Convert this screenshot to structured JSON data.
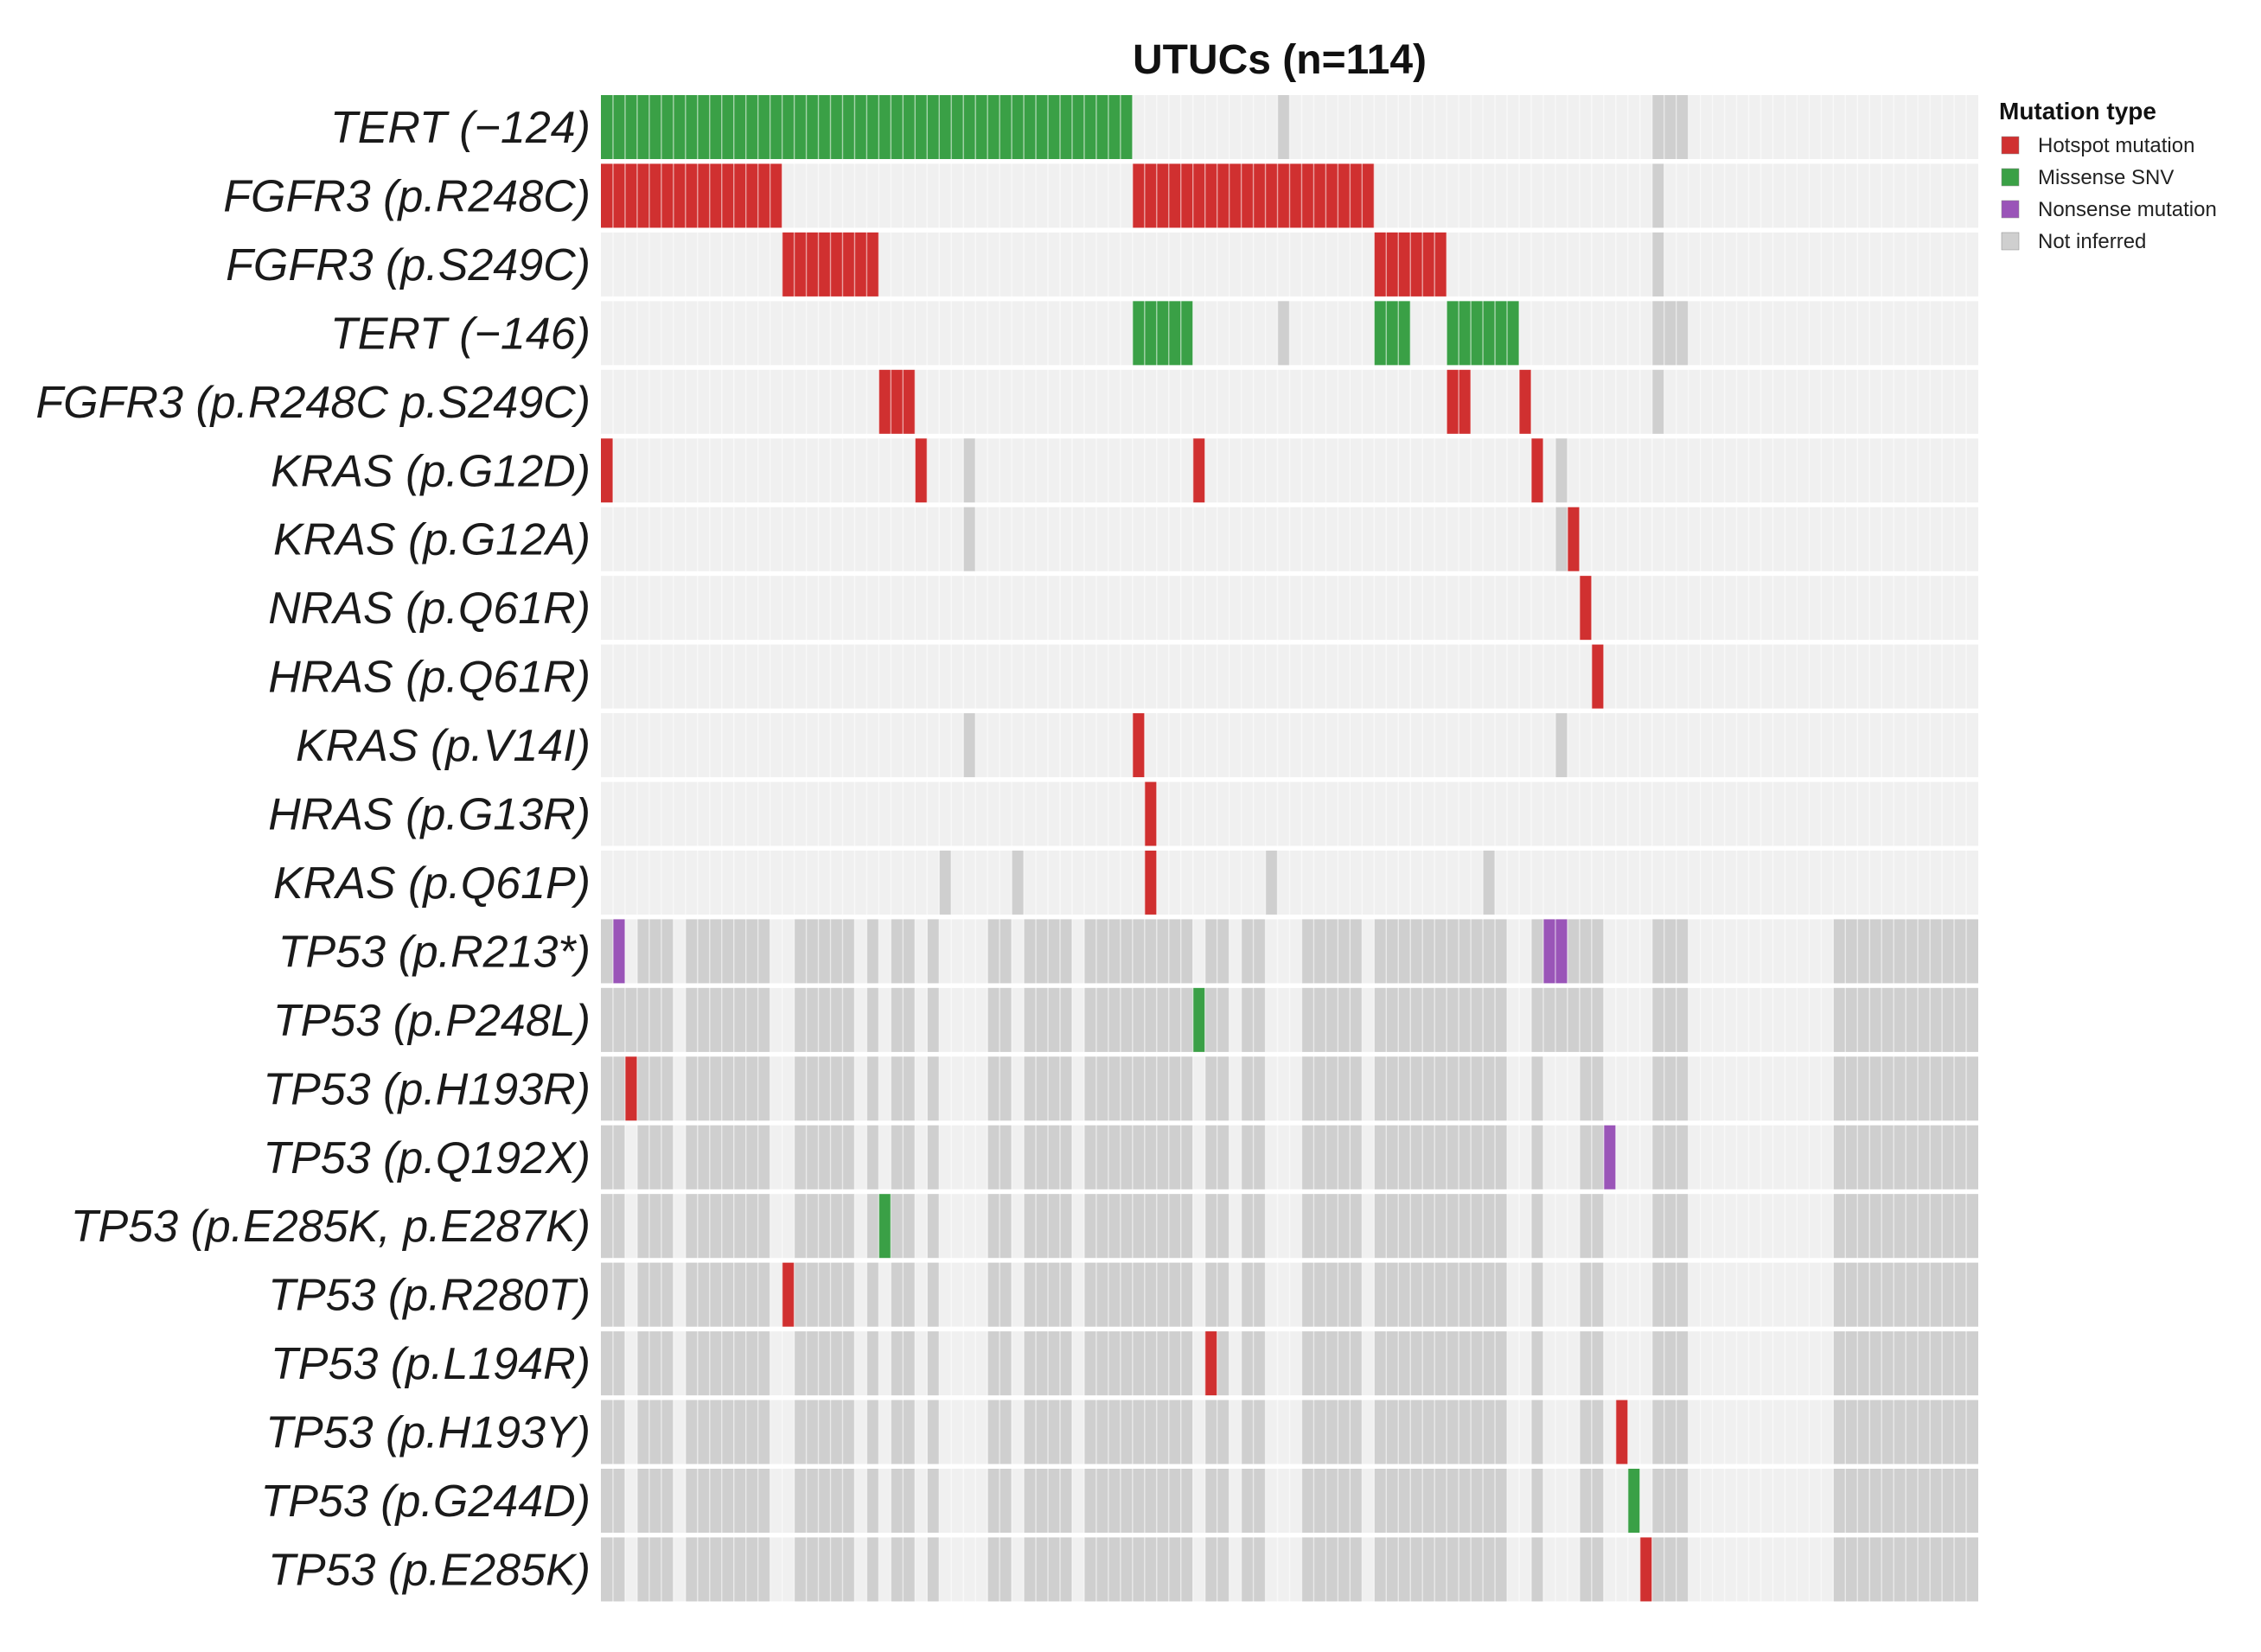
{
  "chart_data": {
    "type": "heatmap",
    "subtype": "oncoprint",
    "title": "UTUCs (n=114)",
    "n_samples": 114,
    "genes": [
      "TERT (−124)",
      "FGFR3 (p.R248C)",
      "FGFR3 (p.S249C)",
      "TERT (−146)",
      "FGFR3 (p.R248C p.S249C)",
      "KRAS (p.G12D)",
      "KRAS (p.G12A)",
      "NRAS (p.Q61R)",
      "HRAS (p.Q61R)",
      "KRAS (p.V14I)",
      "HRAS (p.G13R)",
      "KRAS (p.Q61P)",
      "TP53 (p.R213*)",
      "TP53 (p.P248L)",
      "TP53 (p.H193R)",
      "TP53 (p.Q192X)",
      "TP53 (p.E285K, p.E287K)",
      "TP53 (p.R280T)",
      "TP53 (p.L194R)",
      "TP53 (p.H193Y)",
      "TP53 (p.G244D)",
      "TP53 (p.E285K)"
    ],
    "legend": {
      "title": "Mutation type",
      "position": "top-right",
      "items": [
        {
          "label": "Hotspot mutation",
          "code": "H",
          "color": "#d03030"
        },
        {
          "label": "Missense SNV",
          "code": "M",
          "color": "#3aa046"
        },
        {
          "label": "Nonsense mutation",
          "code": "N",
          "color": "#9a55b8"
        },
        {
          "label": "Not inferred",
          "code": "X",
          "color": "#cfcfcf"
        }
      ]
    },
    "background_color": "#f0f0f0",
    "mutations": [
      {
        "gene": 0,
        "type": "M",
        "samples": [
          [
            0,
            43
          ]
        ]
      },
      {
        "gene": 1,
        "type": "H",
        "samples": [
          [
            0,
            14
          ],
          [
            44,
            63
          ]
        ]
      },
      {
        "gene": 2,
        "type": "H",
        "samples": [
          [
            15,
            22
          ],
          [
            64,
            69
          ]
        ]
      },
      {
        "gene": 3,
        "type": "M",
        "samples": [
          [
            44,
            48
          ],
          [
            64,
            66
          ],
          [
            70,
            75
          ]
        ]
      },
      {
        "gene": 4,
        "type": "H",
        "samples": [
          [
            23,
            25
          ],
          [
            70,
            71
          ],
          [
            76,
            76
          ]
        ]
      },
      {
        "gene": 5,
        "type": "H",
        "samples": [
          [
            0,
            0
          ],
          [
            26,
            26
          ],
          [
            49,
            49
          ],
          [
            77,
            77
          ]
        ]
      },
      {
        "gene": 6,
        "type": "H",
        "samples": [
          [
            80,
            80
          ]
        ]
      },
      {
        "gene": 7,
        "type": "H",
        "samples": [
          [
            81,
            81
          ]
        ]
      },
      {
        "gene": 8,
        "type": "H",
        "samples": [
          [
            82,
            82
          ]
        ]
      },
      {
        "gene": 9,
        "type": "H",
        "samples": [
          [
            44,
            44
          ]
        ]
      },
      {
        "gene": 10,
        "type": "H",
        "samples": [
          [
            45,
            45
          ]
        ]
      },
      {
        "gene": 11,
        "type": "H",
        "samples": [
          [
            45,
            45
          ]
        ]
      },
      {
        "gene": 12,
        "type": "N",
        "samples": [
          [
            1,
            1
          ],
          [
            78,
            79
          ]
        ]
      },
      {
        "gene": 13,
        "type": "M",
        "samples": [
          [
            49,
            49
          ]
        ]
      },
      {
        "gene": 14,
        "type": "H",
        "samples": [
          [
            2,
            2
          ]
        ]
      },
      {
        "gene": 15,
        "type": "N",
        "samples": [
          [
            83,
            83
          ]
        ]
      },
      {
        "gene": 16,
        "type": "M",
        "samples": [
          [
            23,
            23
          ]
        ]
      },
      {
        "gene": 17,
        "type": "H",
        "samples": [
          [
            15,
            15
          ]
        ]
      },
      {
        "gene": 18,
        "type": "H",
        "samples": [
          [
            50,
            50
          ]
        ]
      },
      {
        "gene": 19,
        "type": "H",
        "samples": [
          [
            84,
            84
          ]
        ]
      },
      {
        "gene": 20,
        "type": "M",
        "samples": [
          [
            85,
            85
          ]
        ]
      },
      {
        "gene": 21,
        "type": "H",
        "samples": [
          [
            86,
            86
          ]
        ]
      }
    ],
    "not_inferred": [
      {
        "genes": [
          0,
          3
        ],
        "samples": [
          [
            56,
            56
          ],
          [
            87,
            89
          ]
        ]
      },
      {
        "genes": [
          1,
          2,
          4
        ],
        "samples": [
          [
            87,
            87
          ]
        ]
      },
      {
        "genes": [
          5,
          6
        ],
        "samples": [
          [
            30,
            30
          ]
        ]
      },
      {
        "genes": [
          5,
          6
        ],
        "samples": [
          [
            79,
            79
          ]
        ]
      },
      {
        "genes": [
          9
        ],
        "samples": [
          [
            30,
            30
          ],
          [
            79,
            79
          ]
        ]
      },
      {
        "genes": [
          11
        ],
        "samples": [
          [
            28,
            28
          ],
          [
            34,
            34
          ],
          [
            55,
            55
          ],
          [
            73,
            73
          ]
        ]
      },
      {
        "genes": [
          12,
          13,
          14,
          15,
          16,
          17,
          18,
          19,
          20,
          21
        ],
        "samples": [
          [
            0,
            0
          ],
          [
            3,
            5
          ],
          [
            7,
            13
          ],
          [
            16,
            20
          ],
          [
            22,
            22
          ],
          [
            24,
            25
          ],
          [
            27,
            27
          ],
          [
            32,
            33
          ],
          [
            35,
            38
          ],
          [
            40,
            48
          ],
          [
            50,
            51
          ],
          [
            53,
            54
          ],
          [
            58,
            62
          ],
          [
            64,
            74
          ],
          [
            77,
            77
          ],
          [
            81,
            82
          ],
          [
            87,
            89
          ],
          [
            102,
            113
          ]
        ]
      },
      {
        "genes": [
          12,
          13
        ],
        "samples": [
          [
            80,
            82
          ]
        ]
      },
      {
        "genes": [
          13
        ],
        "samples": [
          [
            1,
            2
          ],
          [
            78,
            79
          ]
        ]
      },
      {
        "genes": [
          14
        ],
        "samples": [
          [
            1,
            1
          ]
        ]
      },
      {
        "genes": [
          15,
          16,
          17,
          18,
          19,
          20,
          21
        ],
        "samples": [
          [
            1,
            1
          ]
        ]
      }
    ]
  }
}
